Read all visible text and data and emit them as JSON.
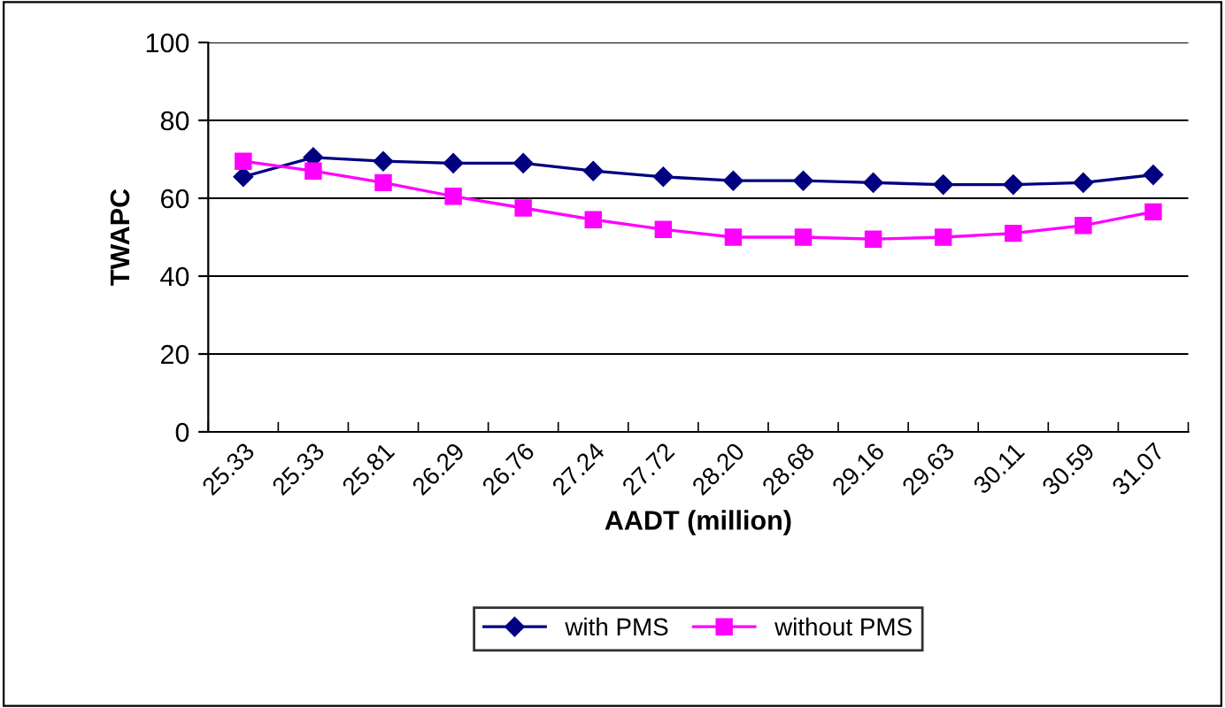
{
  "chart_data": {
    "type": "line",
    "xlabel": "AADT (million)",
    "ylabel": "TWAPC",
    "categories": [
      "25.33",
      "25.33",
      "25.81",
      "26.29",
      "26.76",
      "27.24",
      "27.72",
      "28.20",
      "28.68",
      "29.16",
      "29.63",
      "30.11",
      "30.59",
      "31.07"
    ],
    "series": [
      {
        "name": "with PMS",
        "color": "#000080",
        "marker": "diamond",
        "values": [
          65.5,
          70.5,
          69.5,
          69,
          69,
          67,
          65.5,
          64.5,
          64.5,
          64,
          63.5,
          63.5,
          64,
          66
        ]
      },
      {
        "name": "without PMS",
        "color": "#ff00ff",
        "marker": "square",
        "values": [
          69.5,
          67,
          64,
          60.5,
          57.5,
          54.5,
          52,
          50,
          50,
          49.5,
          50,
          51,
          53,
          56.5
        ]
      }
    ],
    "ylim": [
      0,
      100
    ],
    "yticks": [
      0,
      20,
      40,
      60,
      80,
      100
    ],
    "grid": "y",
    "legend": "bottom",
    "line_style": "solid"
  }
}
